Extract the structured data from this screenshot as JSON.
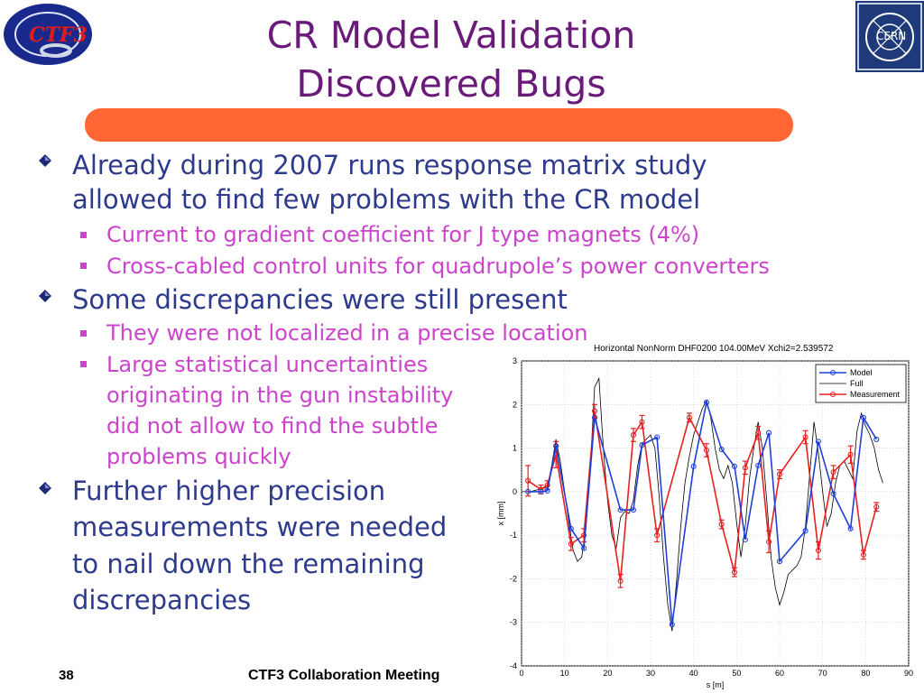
{
  "logos": {
    "ctf3": "CTF3",
    "cern": "CERN"
  },
  "title": {
    "line1": "CR Model Validation",
    "line2": "Discovered Bugs"
  },
  "bullets": [
    {
      "text_lines": [
        "Already during 2007 runs response matrix study",
        "allowed to find few problems with the CR model"
      ]
    },
    {
      "text_lines": [
        "Some discrepancies were still present"
      ]
    },
    {
      "text_lines": [
        "Further higher precision",
        "measurements were needed",
        "to nail down the remaining",
        "discrepancies"
      ]
    }
  ],
  "subbullets": [
    {
      "text_lines": [
        "Current to gradient coefficient for J type magnets (4%)"
      ]
    },
    {
      "text_lines": [
        "Cross-cabled control units for quadrupole’s power converters"
      ]
    },
    {
      "text_lines": [
        "They were not localized in a precise location"
      ]
    },
    {
      "text_lines": [
        "Large statistical uncertainties",
        "originating in the gun instability",
        "did not allow to find the subtle",
        "problems quickly"
      ]
    }
  ],
  "footer": {
    "page": "38",
    "text": "CTF3 Collaboration Meeting"
  },
  "colors": {
    "title": "#6a1b7a",
    "bullet": "#2e3a8c",
    "sub": "#cc44cc",
    "bar": "#ff6633",
    "model": "#1f3fd6",
    "full": "#000000",
    "measurement": "#e82020"
  },
  "chart_data": {
    "type": "line",
    "title": "Horizontal NonNorm  DHF0200 104.00MeV Xchi2=2.539572",
    "xlabel": "s [m]",
    "ylabel": "x [mm]",
    "xlim": [
      0,
      90
    ],
    "ylim": [
      -4,
      3
    ],
    "xticks": [
      0,
      10,
      20,
      30,
      40,
      50,
      60,
      70,
      80,
      90
    ],
    "yticks": [
      -4,
      -3,
      -2,
      -1,
      0,
      1,
      2,
      3
    ],
    "grid": true,
    "legend_position": "top-right",
    "series": [
      {
        "name": "Model",
        "marker": "circle",
        "x": [
          1.5,
          4.5,
          6,
          8,
          11.5,
          14.5,
          17,
          23,
          26,
          28,
          31.5,
          35,
          40,
          43,
          46.5,
          49.5,
          52,
          55,
          57.5,
          60,
          66,
          69,
          72.5,
          76.5,
          79.5,
          82.5
        ],
        "y": [
          0,
          0,
          0.02,
          1.05,
          -0.85,
          -1.3,
          1.7,
          -0.42,
          -0.42,
          1.07,
          1.25,
          -3.05,
          0.58,
          2.05,
          0.97,
          0.58,
          -1.1,
          0.6,
          1.35,
          -1.6,
          -0.9,
          1.15,
          -0.05,
          -0.85,
          1.7,
          1.2
        ]
      },
      {
        "name": "Full",
        "marker": "none",
        "x": [
          0,
          2,
          4,
          6,
          7,
          8,
          9,
          10,
          11,
          12,
          13,
          14,
          15,
          16,
          17,
          18,
          19,
          20,
          21,
          22,
          23,
          24,
          25,
          26,
          27,
          28,
          29,
          30,
          31,
          32,
          33,
          34,
          35,
          36,
          37,
          38,
          39,
          40,
          41,
          42,
          43,
          44,
          45,
          46,
          47,
          48,
          49,
          50,
          51,
          52,
          53,
          54,
          55,
          56,
          57,
          58,
          59,
          60,
          61,
          62,
          63,
          64,
          65,
          66,
          67,
          68,
          69,
          70,
          71,
          72,
          73,
          74,
          75,
          76,
          77,
          78,
          79,
          80,
          81,
          82,
          83,
          84
        ],
        "y": [
          0,
          0,
          0.05,
          0.1,
          0.6,
          1.2,
          0.7,
          0.0,
          -0.7,
          -1.35,
          -1.6,
          -1.5,
          -0.8,
          0.6,
          2.4,
          2.6,
          1.0,
          -0.2,
          -1.0,
          -1.3,
          -0.6,
          -0.45,
          -0.5,
          -0.2,
          0.6,
          1.1,
          1.2,
          1.3,
          1.0,
          -0.1,
          -1.5,
          -2.6,
          -3.2,
          -2.1,
          -0.8,
          0.2,
          0.8,
          1.3,
          1.6,
          1.9,
          2.1,
          1.7,
          1.0,
          0.5,
          0.3,
          0.6,
          0.2,
          -0.7,
          -1.5,
          -0.8,
          0.3,
          1.0,
          1.6,
          1.0,
          -0.2,
          -1.5,
          -2.2,
          -2.6,
          -2.3,
          -1.9,
          -1.8,
          -1.7,
          -1.5,
          -0.8,
          0.4,
          1.6,
          0.9,
          0.0,
          -0.8,
          -0.5,
          0.2,
          0.6,
          0.7,
          0.5,
          0.3,
          1.4,
          1.8,
          1.5,
          1.3,
          1.0,
          0.5,
          0.2
        ]
      },
      {
        "name": "Measurement",
        "marker": "circle",
        "errorbars": true,
        "x": [
          1.5,
          4.5,
          6,
          8,
          11.5,
          14.5,
          17,
          23,
          26,
          28,
          31.5,
          39,
          43,
          46.5,
          49.5,
          52,
          55,
          57.5,
          60,
          66,
          69,
          72.5,
          76.5,
          79.5,
          82.5
        ],
        "y": [
          0.25,
          0.05,
          0.15,
          0.85,
          -1.2,
          -1.0,
          1.85,
          -2.05,
          1.3,
          1.6,
          -1.0,
          1.7,
          0.95,
          -0.75,
          -1.85,
          0.55,
          1.35,
          -1.15,
          0.4,
          1.25,
          -1.35,
          0.45,
          0.85,
          -1.45,
          -0.35
        ],
        "err": [
          0.35,
          0.1,
          0.1,
          0.3,
          0.15,
          0.15,
          0.15,
          0.15,
          0.15,
          0.15,
          0.15,
          0.1,
          0.15,
          0.1,
          0.1,
          0.15,
          0.15,
          0.25,
          0.1,
          0.15,
          0.2,
          0.15,
          0.2,
          0.1,
          0.1
        ]
      }
    ]
  }
}
